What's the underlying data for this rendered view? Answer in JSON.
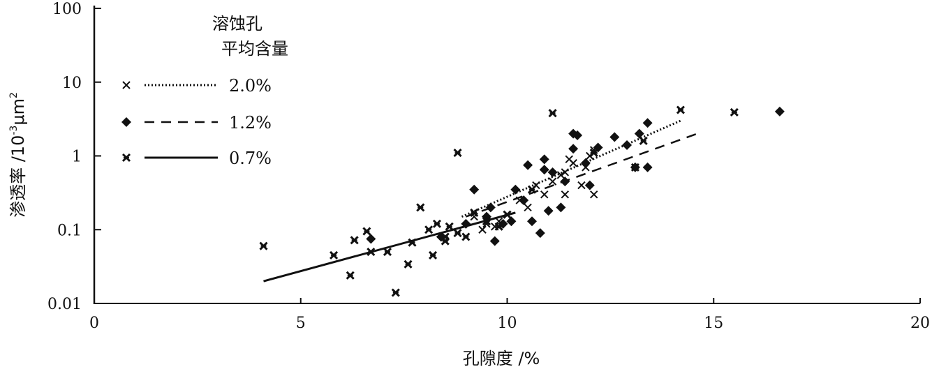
{
  "chart_data": {
    "type": "scatter",
    "xlabel": "孔隙度 /%",
    "ylabel": "渗透率 /10",
    "ylabel_exp": "-3",
    "ylabel_unit": "μm",
    "ylabel_unit_exp": "2",
    "xlim": [
      0,
      20
    ],
    "ylim": [
      0.01,
      100
    ],
    "yscale": "log",
    "x_ticks": [
      0,
      5,
      10,
      15,
      20
    ],
    "y_ticks": [
      0.01,
      0.1,
      1,
      10,
      100
    ],
    "y_tick_labels": [
      "0.01",
      "0.1",
      "1",
      "10",
      "100"
    ],
    "grid": false,
    "legend": {
      "title_line1": "溶蚀孔",
      "title_line2": "平均含量",
      "placement": "top-left"
    },
    "series": [
      {
        "name": "2.0%",
        "marker": "x",
        "line": "dotted",
        "trend": [
          [
            8.9,
            0.15
          ],
          [
            14.2,
            3.0
          ]
        ],
        "points": [
          [
            9.2,
            0.15
          ],
          [
            9.5,
            0.12
          ],
          [
            9.8,
            0.13
          ],
          [
            10.0,
            0.16
          ],
          [
            10.3,
            0.25
          ],
          [
            10.5,
            0.2
          ],
          [
            10.7,
            0.4
          ],
          [
            10.9,
            0.3
          ],
          [
            11.1,
            0.45
          ],
          [
            11.3,
            0.55
          ],
          [
            11.4,
            0.6
          ],
          [
            11.5,
            0.9
          ],
          [
            11.6,
            0.8
          ],
          [
            11.8,
            0.4
          ],
          [
            11.9,
            0.7
          ],
          [
            12.0,
            1.0
          ],
          [
            12.1,
            1.2
          ],
          [
            11.4,
            0.3
          ],
          [
            12.1,
            0.3
          ],
          [
            10.6,
            0.35
          ],
          [
            9.7,
            0.11
          ],
          [
            9.4,
            0.1
          ]
        ]
      },
      {
        "name": "1.2%",
        "marker": "diamond",
        "line": "dashed",
        "trend": [
          [
            9.0,
            0.15
          ],
          [
            14.6,
            2.0
          ]
        ],
        "points": [
          [
            6.7,
            0.075
          ],
          [
            8.4,
            0.08
          ],
          [
            9.0,
            0.12
          ],
          [
            9.2,
            0.35
          ],
          [
            9.5,
            0.15
          ],
          [
            9.6,
            0.2
          ],
          [
            9.7,
            0.07
          ],
          [
            9.9,
            0.12
          ],
          [
            10.1,
            0.13
          ],
          [
            10.2,
            0.35
          ],
          [
            10.4,
            0.25
          ],
          [
            10.5,
            0.75
          ],
          [
            10.6,
            0.13
          ],
          [
            10.8,
            0.09
          ],
          [
            10.9,
            0.65
          ],
          [
            10.9,
            0.9
          ],
          [
            11.0,
            0.18
          ],
          [
            11.1,
            0.6
          ],
          [
            11.3,
            0.2
          ],
          [
            11.4,
            0.45
          ],
          [
            11.6,
            1.25
          ],
          [
            11.6,
            2.0
          ],
          [
            11.7,
            1.9
          ],
          [
            11.9,
            0.8
          ],
          [
            12.0,
            0.4
          ],
          [
            12.2,
            1.3
          ],
          [
            12.6,
            1.8
          ],
          [
            12.9,
            1.4
          ],
          [
            13.2,
            2.0
          ],
          [
            13.1,
            0.7
          ],
          [
            13.4,
            0.7
          ],
          [
            13.4,
            2.8
          ],
          [
            16.6,
            4.0
          ]
        ]
      },
      {
        "name": "0.7%",
        "marker": "asterisk",
        "line": "solid",
        "trend": [
          [
            4.1,
            0.02
          ],
          [
            10.2,
            0.17
          ]
        ],
        "points": [
          [
            4.1,
            0.06
          ],
          [
            5.8,
            0.045
          ],
          [
            6.2,
            0.024
          ],
          [
            6.3,
            0.072
          ],
          [
            6.6,
            0.095
          ],
          [
            6.7,
            0.05
          ],
          [
            7.1,
            0.05
          ],
          [
            7.3,
            0.014
          ],
          [
            7.6,
            0.034
          ],
          [
            7.7,
            0.067
          ],
          [
            7.9,
            0.2
          ],
          [
            8.1,
            0.1
          ],
          [
            8.2,
            0.045
          ],
          [
            8.3,
            0.12
          ],
          [
            8.5,
            0.08
          ],
          [
            8.6,
            0.11
          ],
          [
            8.8,
            0.09
          ],
          [
            8.8,
            1.1
          ],
          [
            9.0,
            0.08
          ],
          [
            9.2,
            0.17
          ],
          [
            9.5,
            0.13
          ],
          [
            9.8,
            0.11
          ],
          [
            10.0,
            0.16
          ],
          [
            10.6,
            0.35
          ],
          [
            11.1,
            3.8
          ],
          [
            12.1,
            1.1
          ],
          [
            13.1,
            0.7
          ],
          [
            13.3,
            1.6
          ],
          [
            14.2,
            4.2
          ],
          [
            15.5,
            3.9
          ],
          [
            8.5,
            0.07
          ]
        ]
      }
    ]
  }
}
